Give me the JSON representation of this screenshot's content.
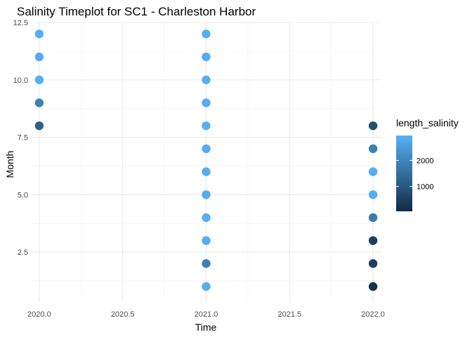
{
  "chart_data": {
    "type": "scatter",
    "title": "Salinity Timeplot for SC1 - Charleston Harbor",
    "xlabel": "Time",
    "ylabel": "Month",
    "xlim": [
      2019.95,
      2022.05
    ],
    "ylim": [
      0.33,
      12.5
    ],
    "x_ticks": [
      2020.0,
      2020.5,
      2021.0,
      2021.5,
      2022.0
    ],
    "x_tick_labels": [
      "2020.0",
      "2020.5",
      "2021.0",
      "2021.5",
      "2022.0"
    ],
    "y_ticks": [
      2.5,
      5.0,
      7.5,
      10.0,
      12.5
    ],
    "y_tick_labels": [
      "2.5",
      "5.0",
      "7.5",
      "10.0",
      "12.5"
    ],
    "grid": true,
    "legend": {
      "title": "length_salinity",
      "placement": "right",
      "labels": [
        "2000",
        "1000"
      ],
      "label_values": [
        2000,
        1000
      ],
      "range": [
        50,
        2950
      ],
      "color_low": "#132b43",
      "color_high": "#56b1f7"
    },
    "points": [
      {
        "x": 2020,
        "y": 12,
        "length_salinity": 2900
      },
      {
        "x": 2020,
        "y": 11,
        "length_salinity": 2850
      },
      {
        "x": 2020,
        "y": 10,
        "length_salinity": 2900
      },
      {
        "x": 2020,
        "y": 9,
        "length_salinity": 1900
      },
      {
        "x": 2020,
        "y": 8,
        "length_salinity": 1200
      },
      {
        "x": 2021,
        "y": 12,
        "length_salinity": 2900
      },
      {
        "x": 2021,
        "y": 11,
        "length_salinity": 2850
      },
      {
        "x": 2021,
        "y": 10,
        "length_salinity": 2900
      },
      {
        "x": 2021,
        "y": 9,
        "length_salinity": 2850
      },
      {
        "x": 2021,
        "y": 8,
        "length_salinity": 2900
      },
      {
        "x": 2021,
        "y": 7,
        "length_salinity": 2850
      },
      {
        "x": 2021,
        "y": 6,
        "length_salinity": 2900
      },
      {
        "x": 2021,
        "y": 5,
        "length_salinity": 2850
      },
      {
        "x": 2021,
        "y": 4,
        "length_salinity": 2900
      },
      {
        "x": 2021,
        "y": 3,
        "length_salinity": 2850
      },
      {
        "x": 2021,
        "y": 2,
        "length_salinity": 1900
      },
      {
        "x": 2021,
        "y": 1,
        "length_salinity": 2900
      },
      {
        "x": 2022,
        "y": 8,
        "length_salinity": 800
      },
      {
        "x": 2022,
        "y": 7,
        "length_salinity": 1900
      },
      {
        "x": 2022,
        "y": 6,
        "length_salinity": 2850
      },
      {
        "x": 2022,
        "y": 5,
        "length_salinity": 2850
      },
      {
        "x": 2022,
        "y": 4,
        "length_salinity": 1800
      },
      {
        "x": 2022,
        "y": 3,
        "length_salinity": 500
      },
      {
        "x": 2022,
        "y": 2,
        "length_salinity": 500
      },
      {
        "x": 2022,
        "y": 1,
        "length_salinity": 200
      }
    ]
  }
}
